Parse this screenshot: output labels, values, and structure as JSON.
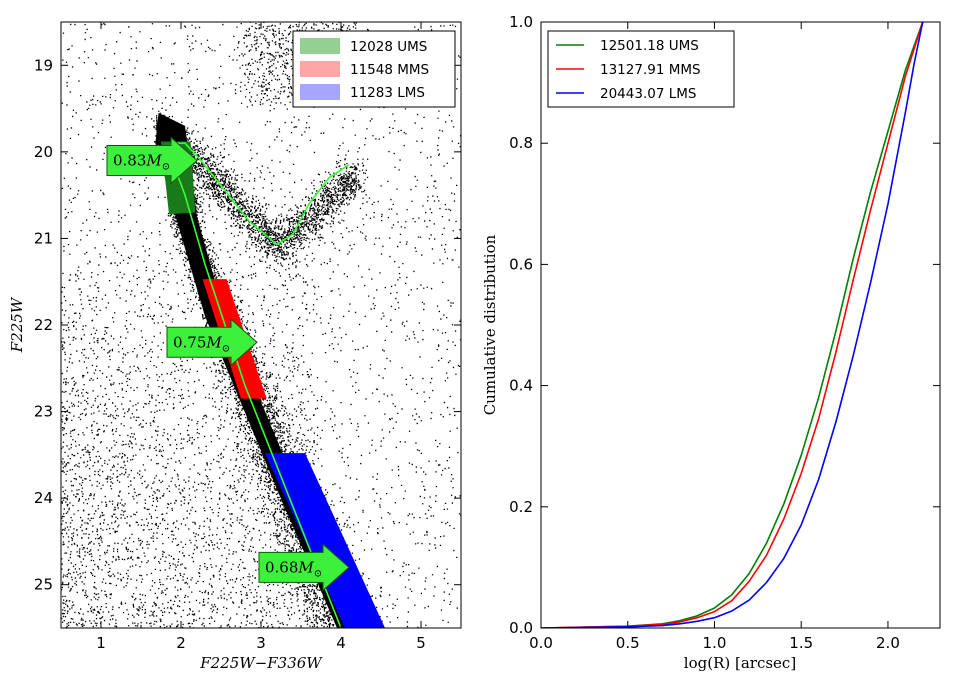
{
  "chart_data": [
    {
      "type": "scatter",
      "title": "",
      "xlabel": "F225W−F336W",
      "ylabel": "F225W",
      "xlim": [
        0.5,
        5.5
      ],
      "ylim": [
        25.5,
        18.5
      ],
      "x_ticks": [
        "1",
        "2",
        "3",
        "4",
        "5"
      ],
      "y_ticks": [
        "19",
        "20",
        "21",
        "22",
        "23",
        "24",
        "25"
      ],
      "legend": {
        "placement": "top-right",
        "entries": [
          {
            "label": "12028 UMS",
            "color": "#66bb66"
          },
          {
            "label": "11548 MMS",
            "color": "#ff8080"
          },
          {
            "label": "11283 LMS",
            "color": "#8080ff"
          }
        ]
      },
      "selection_boxes": [
        {
          "name": "UMS",
          "color": "#1a7a1a",
          "poly": [
            [
              1.75,
              19.88
            ],
            [
              2.12,
              19.88
            ],
            [
              2.18,
              20.7
            ],
            [
              1.85,
              20.72
            ]
          ]
        },
        {
          "name": "MMS",
          "color": "#ff0000",
          "poly": [
            [
              2.27,
              21.47
            ],
            [
              2.57,
              21.47
            ],
            [
              3.07,
              22.85
            ],
            [
              2.75,
              22.85
            ]
          ]
        },
        {
          "name": "LMS",
          "color": "#0000ff",
          "poly": [
            [
              3.05,
              23.48
            ],
            [
              3.55,
              23.48
            ],
            [
              4.55,
              25.5
            ],
            [
              4.05,
              25.5
            ]
          ]
        }
      ],
      "isochrone": {
        "color": "#33ff33",
        "points": [
          [
            4.0,
            25.5
          ],
          [
            3.7,
            24.8
          ],
          [
            3.4,
            24.1
          ],
          [
            3.1,
            23.4
          ],
          [
            2.8,
            22.7
          ],
          [
            2.55,
            22.0
          ],
          [
            2.3,
            21.3
          ],
          [
            2.05,
            20.5
          ],
          [
            1.85,
            20.0
          ],
          [
            1.88,
            19.9
          ],
          [
            2.05,
            19.9
          ],
          [
            2.25,
            20.1
          ],
          [
            2.55,
            20.45
          ],
          [
            2.85,
            20.8
          ],
          [
            3.2,
            21.07
          ],
          [
            3.4,
            20.95
          ],
          [
            3.6,
            20.6
          ],
          [
            3.85,
            20.3
          ],
          [
            4.1,
            20.15
          ]
        ]
      },
      "annotations": [
        {
          "text": "0.83",
          "x": 1.65,
          "y": 20.1
        },
        {
          "text": "0.75",
          "x": 2.4,
          "y": 22.2
        },
        {
          "text": "0.68",
          "x": 3.55,
          "y": 24.8
        }
      ],
      "annotation_suffix": "M",
      "annotation_subscript": "⊙",
      "scatter_color": "#000000"
    },
    {
      "type": "line",
      "title": "",
      "xlabel": "log(R) [arcsec]",
      "ylabel": "Cumulative distribution",
      "xlim": [
        0.0,
        2.3
      ],
      "ylim": [
        0.0,
        1.0
      ],
      "x_ticks": [
        "0.0",
        "0.5",
        "1.0",
        "1.5",
        "2.0"
      ],
      "y_ticks": [
        "0.0",
        "0.2",
        "0.4",
        "0.6",
        "0.8",
        "1.0"
      ],
      "legend": {
        "placement": "top-left"
      },
      "x": [
        0.0,
        0.5,
        0.7,
        0.8,
        0.9,
        1.0,
        1.1,
        1.2,
        1.3,
        1.4,
        1.5,
        1.6,
        1.7,
        1.8,
        1.9,
        2.0,
        2.1,
        2.15,
        2.2
      ],
      "series": [
        {
          "name": "12501.18 UMS",
          "color": "#008000",
          "values": [
            0.0,
            0.003,
            0.007,
            0.012,
            0.02,
            0.033,
            0.055,
            0.09,
            0.14,
            0.205,
            0.285,
            0.38,
            0.49,
            0.61,
            0.72,
            0.82,
            0.92,
            0.96,
            1.0
          ]
        },
        {
          "name": "13127.91 MMS",
          "color": "#ff0000",
          "values": [
            0.0,
            0.003,
            0.006,
            0.01,
            0.017,
            0.027,
            0.045,
            0.077,
            0.12,
            0.18,
            0.255,
            0.345,
            0.455,
            0.575,
            0.69,
            0.8,
            0.91,
            0.955,
            1.0
          ]
        },
        {
          "name": "20443.07 LMS",
          "color": "#0000ff",
          "values": [
            0.0,
            0.002,
            0.004,
            0.007,
            0.011,
            0.017,
            0.028,
            0.046,
            0.075,
            0.115,
            0.17,
            0.245,
            0.34,
            0.45,
            0.57,
            0.7,
            0.85,
            0.93,
            1.0
          ]
        }
      ]
    }
  ]
}
